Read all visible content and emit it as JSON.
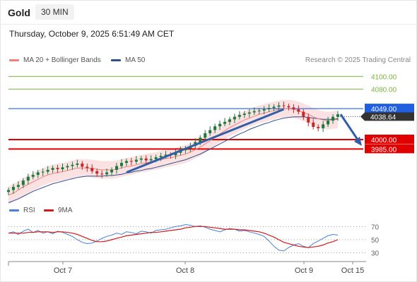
{
  "header": {
    "instrument": "Gold",
    "timeframe": "30 MIN",
    "datetime": "Thursday, October 9, 2025 6:51:49 AM CET"
  },
  "legend": {
    "ma20_label": "MA 20 + Bollinger Bands",
    "ma50_label": "MA 50",
    "rsi_label": "RSI",
    "rsi_ma_label": "9MA"
  },
  "credit": "Research © 2025 Trading Central",
  "colors": {
    "ma20": "#f08080",
    "ma50": "#2f4f8f",
    "support": "#e00000",
    "resistance_green": "#7cb342",
    "pivot_blue": "#2060e0",
    "candle_up": "#1a7a3c",
    "candle_down": "#c62828",
    "arrow": "#2f5fa8",
    "rsi": "#4a7fd4",
    "rsi_ma": "#d11a1a",
    "bands_fill": "#f9d6d6"
  },
  "chart_data": [
    {
      "type": "candlestick",
      "title": "Gold",
      "x_ticks": [
        "Oct 7",
        "Oct 8",
        "Oct 9",
        "Oct 15"
      ],
      "price_range": [
        3905,
        4115
      ],
      "levels": [
        {
          "value": 4100.0,
          "label": "4100.00",
          "kind": "resistance"
        },
        {
          "value": 4080.0,
          "label": "4080.00",
          "kind": "resistance"
        },
        {
          "value": 4049.0,
          "label": "4049.00",
          "kind": "pivot"
        },
        {
          "value": 4000.0,
          "label": "4000.00",
          "kind": "support"
        },
        {
          "value": 3985.0,
          "label": "3985.00",
          "kind": "support"
        }
      ],
      "last_price": "4038.64",
      "close_series": [
        3920,
        3925,
        3928,
        3935,
        3941,
        3944,
        3948,
        3949,
        3952,
        3955,
        3953,
        3956,
        3958,
        3960,
        3962,
        3957,
        3955,
        3950,
        3946,
        3945,
        3948,
        3952,
        3958,
        3963,
        3966,
        3965,
        3968,
        3970,
        3967,
        3969,
        3972,
        3974,
        3976,
        3975,
        3979,
        3983,
        3986,
        3990,
        3996,
        4003,
        4010,
        4015,
        4021,
        4025,
        4028,
        4032,
        4036,
        4039,
        4041,
        4043,
        4045,
        4046,
        4048,
        4050,
        4052,
        4054,
        4053,
        4051,
        4048,
        4044,
        4036,
        4027,
        4020,
        4018,
        4024,
        4030,
        4036,
        4040
      ],
      "ma20_series": [
        3912,
        3915,
        3920,
        3925,
        3929,
        3933,
        3937,
        3941,
        3944,
        3946,
        3948,
        3949,
        3951,
        3953,
        3955,
        3955,
        3955,
        3954,
        3953,
        3952,
        3952,
        3952,
        3953,
        3955,
        3957,
        3958,
        3960,
        3962,
        3963,
        3965,
        3966,
        3968,
        3970,
        3971,
        3973,
        3975,
        3977,
        3980,
        3984,
        3988,
        3993,
        3998,
        4004,
        4009,
        4014,
        4019,
        4023,
        4027,
        4031,
        4034,
        4037,
        4040,
        4042,
        4044,
        4046,
        4048,
        4049,
        4049,
        4048,
        4046,
        4043,
        4040,
        4036,
        4033,
        4031,
        4030,
        4031,
        4032
      ],
      "ma50_series": [
        3900,
        3903,
        3906,
        3910,
        3914,
        3918,
        3921,
        3924,
        3927,
        3930,
        3932,
        3934,
        3936,
        3938,
        3940,
        3941,
        3942,
        3942,
        3942,
        3942,
        3943,
        3943,
        3944,
        3945,
        3947,
        3948,
        3950,
        3951,
        3953,
        3954,
        3956,
        3958,
        3960,
        3962,
        3964,
        3966,
        3968,
        3971,
        3974,
        3977,
        3981,
        3985,
        3989,
        3993,
        3997,
        4001,
        4005,
        4009,
        4012,
        4016,
        4019,
        4022,
        4025,
        4027,
        4030,
        4032,
        4034,
        4035,
        4036,
        4036,
        4036,
        4035,
        4034,
        4033,
        4032,
        4032,
        4032,
        4033
      ],
      "trendline": {
        "from": 3948,
        "to": 4048
      },
      "forecast_arrow": {
        "from": 4040,
        "to": 3990
      }
    },
    {
      "type": "line",
      "title": "RSI",
      "y_ticks": [
        "70",
        "50",
        "30"
      ],
      "yrange": [
        20,
        80
      ],
      "series": [
        {
          "name": "RSI",
          "values": [
            60,
            62,
            58,
            63,
            66,
            61,
            64,
            60,
            62,
            59,
            63,
            61,
            58,
            55,
            50,
            46,
            44,
            45,
            48,
            52,
            55,
            57,
            60,
            58,
            62,
            61,
            59,
            63,
            62,
            60,
            64,
            65,
            66,
            68,
            70,
            71,
            73,
            72,
            70,
            71,
            69,
            66,
            64,
            62,
            65,
            67,
            66,
            63,
            64,
            62,
            60,
            58,
            55,
            48,
            40,
            34,
            33,
            38,
            42,
            44,
            40,
            38,
            44,
            48,
            52,
            56,
            58,
            57
          ]
        },
        {
          "name": "9MA",
          "values": [
            60,
            60,
            60,
            60,
            61,
            61,
            62,
            62,
            62,
            61,
            62,
            62,
            61,
            60,
            58,
            55,
            52,
            49,
            47,
            47,
            48,
            50,
            52,
            54,
            56,
            57,
            58,
            59,
            60,
            61,
            61,
            62,
            63,
            64,
            65,
            66,
            68,
            69,
            70,
            70,
            70,
            69,
            68,
            67,
            66,
            66,
            66,
            65,
            65,
            64,
            63,
            62,
            60,
            57,
            54,
            50,
            46,
            44,
            42,
            40,
            39,
            38,
            39,
            40,
            42,
            45,
            47,
            50
          ]
        }
      ]
    }
  ]
}
